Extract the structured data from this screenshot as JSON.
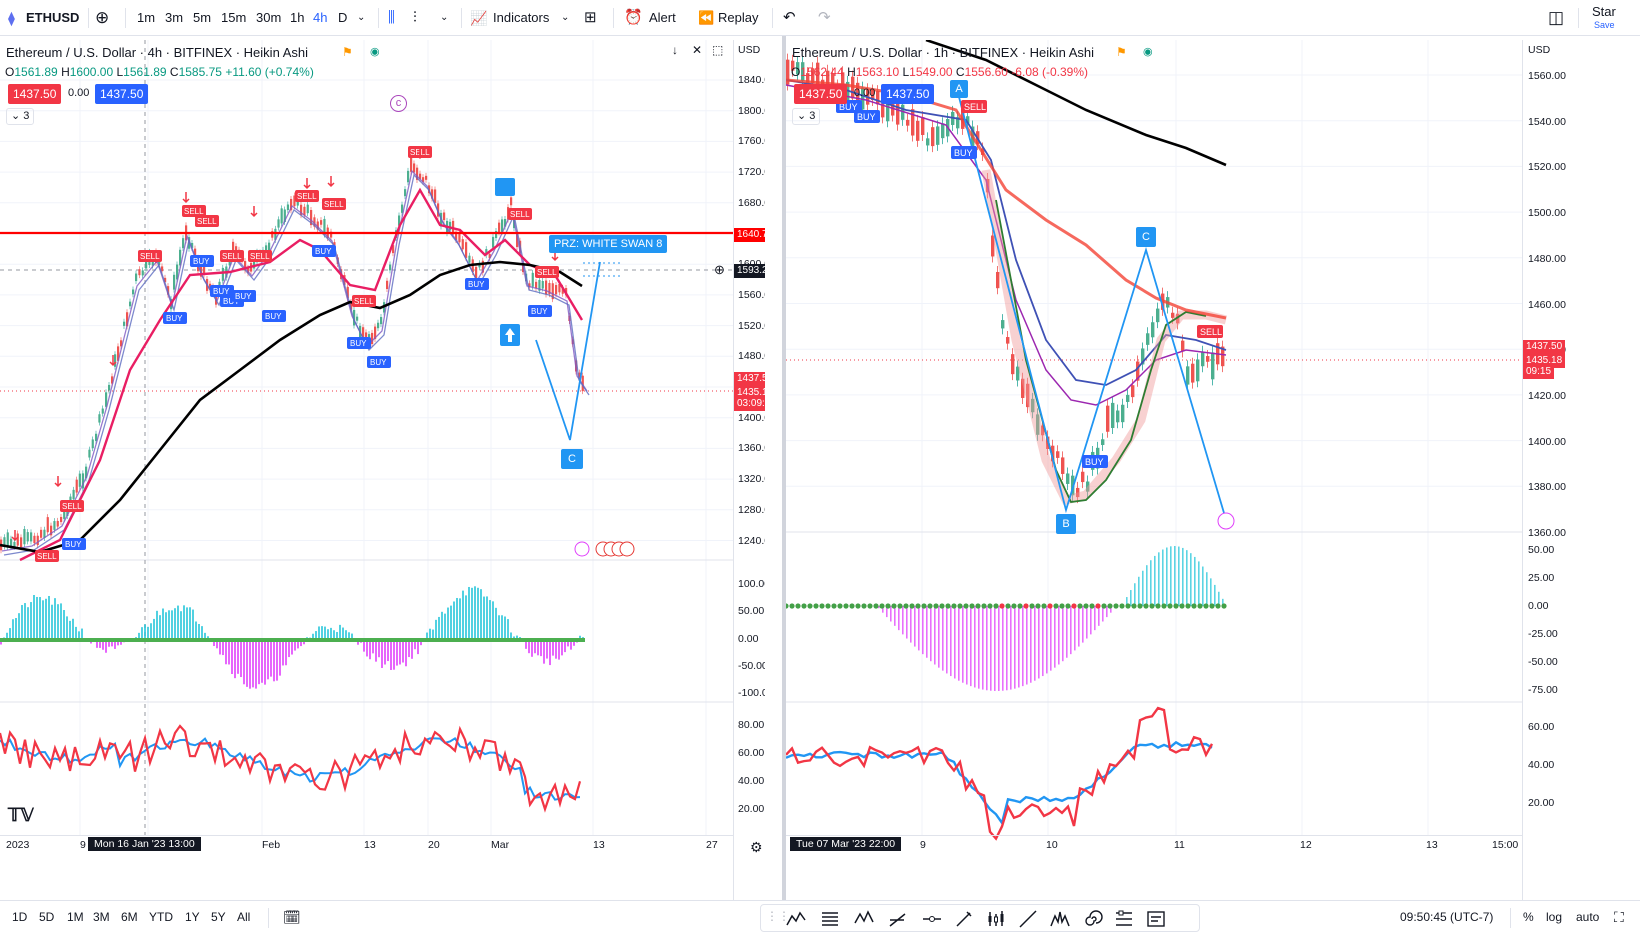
{
  "toolbar": {
    "symbol": "ETHUSD",
    "intervals": [
      "1m",
      "3m",
      "5m",
      "15m",
      "30m",
      "1h",
      "4h",
      "D"
    ],
    "active_interval": "4h",
    "indicators_label": "Indicators",
    "alert_label": "Alert",
    "replay_label": "Replay",
    "star_label": "Star",
    "save_label": "Save"
  },
  "left_chart": {
    "title": "Ethereum / U.S. Dollar · 4h · BITFINEX · Heikin Ashi",
    "ohlc": {
      "o": "1561.89",
      "h": "1600.00",
      "l": "1561.89",
      "c": "1585.75",
      "chg": "+11.60 (+0.74%)"
    },
    "bid": "1437.50",
    "spread": "0.00",
    "ask": "1437.50",
    "hidden_count": "3",
    "currency": "USD",
    "price_axis": [
      "1840.00",
      "1800.00",
      "1760.00",
      "1720.00",
      "1680.00",
      "1640.00",
      "1600.00",
      "1560.00",
      "1520.00",
      "1480.00",
      "1440.00",
      "1400.00",
      "1360.00",
      "1320.00",
      "1280.00",
      "1240.00"
    ],
    "osc1_axis": [
      "100.00",
      "50.00",
      "0.00",
      "-50.00",
      "-100.00"
    ],
    "osc2_axis": [
      "80.00",
      "60.00",
      "40.00",
      "20.00"
    ],
    "time_axis": [
      "2023",
      "9",
      "Feb",
      "13",
      "20",
      "Mar",
      "13",
      "27"
    ],
    "crosshair_time": "Mon 16 Jan '23  13:00",
    "red_line_price": "1640.77",
    "crosshair_price": "1593.22",
    "last_price": "1437.50",
    "last_price2": "1435.18",
    "countdown": "03:09:15",
    "prz_label": "PRZ: WHITE SWAN 8",
    "pattern_c": "C",
    "buy_label": "BUY",
    "sell_label": "SELL",
    "marker_c_circle": "c"
  },
  "right_chart": {
    "title": "Ethereum / U.S. Dollar · 1h · BITFINEX · Heikin Ashi",
    "ohlc": {
      "o": "1562.44",
      "h": "1563.10",
      "l": "1549.00",
      "c": "1556.60",
      "chg": "-6.08 (-0.39%)"
    },
    "bid": "1437.50",
    "spread": "0.00",
    "ask": "1437.50",
    "hidden_count": "3",
    "currency": "USD",
    "price_axis": [
      "1560.00",
      "1540.00",
      "1520.00",
      "1500.00",
      "1480.00",
      "1460.00",
      "1440.00",
      "1420.00",
      "1400.00",
      "1380.00",
      "1360.00"
    ],
    "osc1_axis": [
      "50.00",
      "25.00",
      "0.00",
      "-25.00",
      "-50.00",
      "-75.00"
    ],
    "osc2_axis": [
      "60.00",
      "40.00",
      "20.00"
    ],
    "time_axis": [
      "9",
      "10",
      "11",
      "12",
      "13",
      "15:00"
    ],
    "crosshair_time": "Tue 07 Mar '23  22:00",
    "last_price": "1437.50",
    "last_price2": "1435.18",
    "countdown": "09:15",
    "points": [
      "A",
      "B",
      "C"
    ],
    "buy_label": "BUY",
    "sell_label": "SELL"
  },
  "bottombar": {
    "ranges": [
      "1D",
      "5D",
      "1M",
      "3M",
      "6M",
      "YTD",
      "1Y",
      "5Y",
      "All"
    ],
    "clock": "09:50:45 (UTC-7)",
    "percent": "%",
    "log": "log",
    "auto": "auto"
  },
  "colors": {
    "red_line": "#ff0000",
    "blue": "#2196f3",
    "sell_red": "#f23645",
    "buy_blue": "#2962ff",
    "teal": "#26c6da",
    "magenta": "#e040fb"
  }
}
